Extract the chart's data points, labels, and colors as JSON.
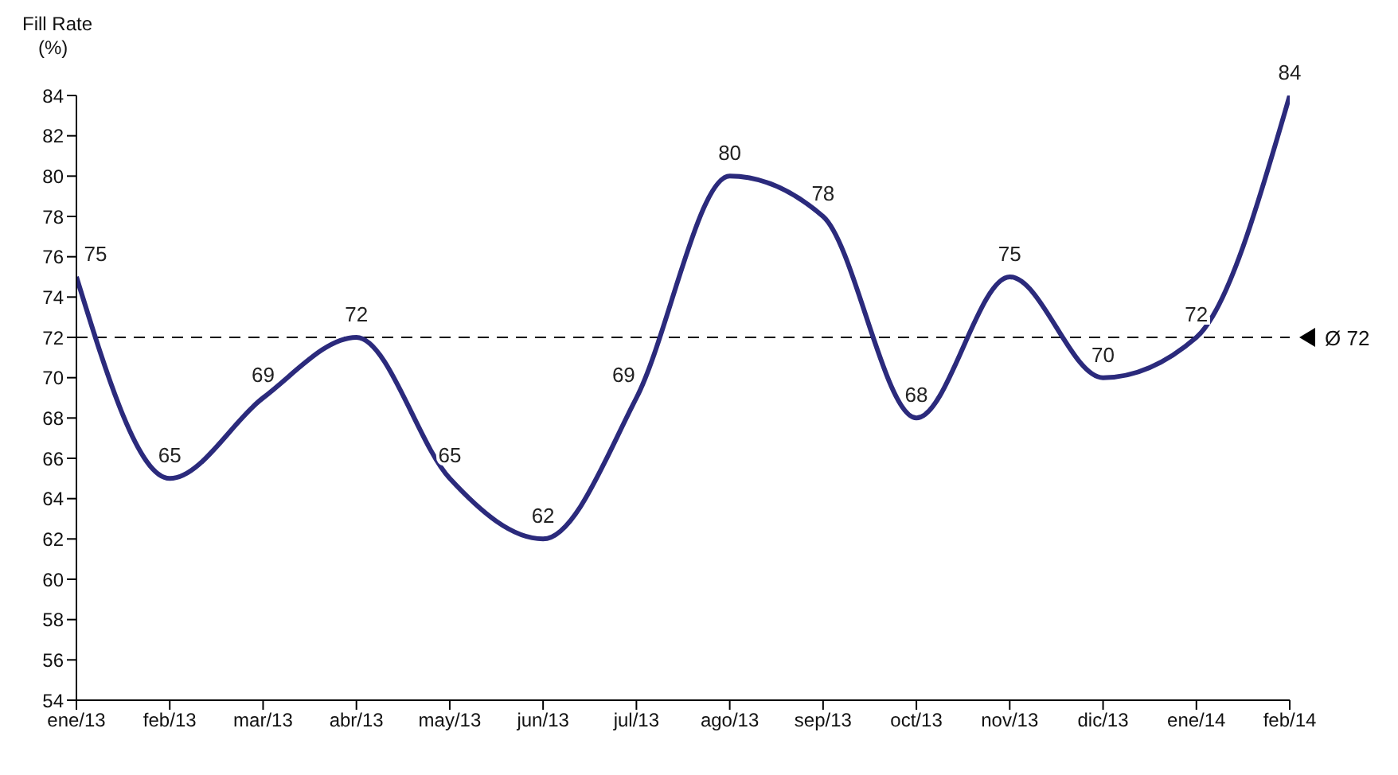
{
  "chart_data": {
    "type": "line",
    "ylabel": "Fill Rate\n(%)",
    "categories": [
      "ene/13",
      "feb/13",
      "mar/13",
      "abr/13",
      "may/13",
      "jun/13",
      "jul/13",
      "ago/13",
      "sep/13",
      "oct/13",
      "nov/13",
      "dic/13",
      "ene/14",
      "feb/14"
    ],
    "series": [
      {
        "color": "#2b2a7c",
        "values": [
          75,
          65,
          69,
          72,
          65,
          62,
          69,
          80,
          78,
          68,
          75,
          70,
          72,
          84
        ]
      }
    ],
    "ylim": [
      54,
      84
    ],
    "yticks": [
      54,
      56,
      58,
      60,
      62,
      64,
      66,
      68,
      70,
      72,
      74,
      76,
      78,
      80,
      82,
      84
    ],
    "ref_lines": [
      {
        "axis": "y",
        "value": 72,
        "label": "Ø 72",
        "color": "#000000",
        "line_style": "dashed"
      }
    ],
    "data_labels": true,
    "marker": "none",
    "line_style": "solid"
  }
}
